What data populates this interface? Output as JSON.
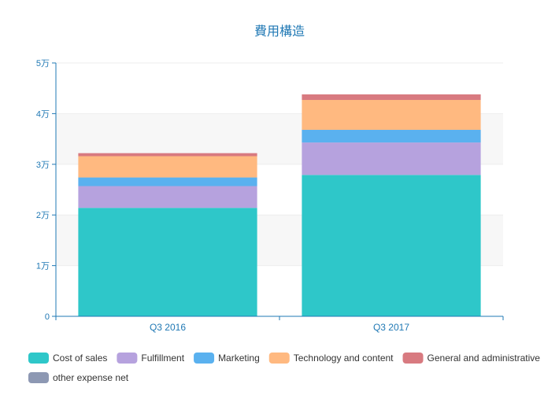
{
  "chart_data": {
    "type": "bar",
    "stacked": true,
    "title": "費用構造",
    "xlabel": "",
    "ylabel": "",
    "categories": [
      "Q3 2016",
      "Q3 2017"
    ],
    "ylim": [
      0,
      50000
    ],
    "y_ticks": [
      {
        "value": 0,
        "label": "0"
      },
      {
        "value": 10000,
        "label": "1万"
      },
      {
        "value": 20000,
        "label": "2万"
      },
      {
        "value": 30000,
        "label": "3万"
      },
      {
        "value": 40000,
        "label": "4万"
      },
      {
        "value": 50000,
        "label": "5万"
      }
    ],
    "grid": true,
    "grid_style": "alternating horizontal bands",
    "legend_position": "bottom-left",
    "colors": {
      "axis": "#1f78b4",
      "title": "#1f78b4",
      "band": "#f7f7f7"
    },
    "series": [
      {
        "name": "Cost of sales",
        "color": "#2ec7c9",
        "values": [
          21400,
          27900
        ]
      },
      {
        "name": "Fulfillment",
        "color": "#b6a2de",
        "values": [
          4300,
          6400
        ]
      },
      {
        "name": "Marketing",
        "color": "#5ab1ef",
        "values": [
          1700,
          2500
        ]
      },
      {
        "name": "Technology and content",
        "color": "#ffb980",
        "values": [
          4200,
          5900
        ]
      },
      {
        "name": "General and administrative",
        "color": "#d87a80",
        "values": [
          600,
          1100
        ]
      },
      {
        "name": "other expense net",
        "color": "#8d98b3",
        "values": [
          0,
          0
        ]
      }
    ]
  }
}
